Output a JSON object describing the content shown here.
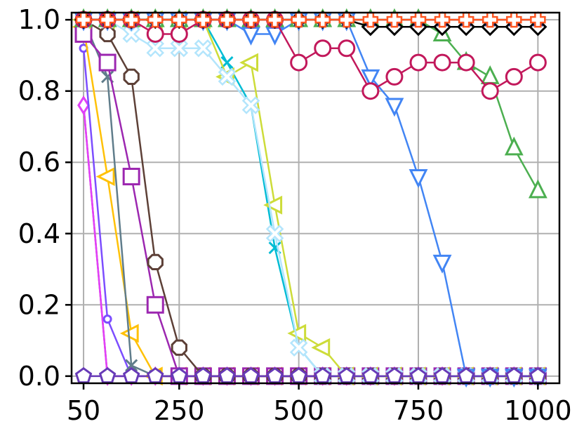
{
  "chart_data": {
    "type": "line",
    "title": "",
    "xlabel": "",
    "ylabel": "",
    "xlim": [
      25,
      1045
    ],
    "ylim": [
      -0.02,
      1.02
    ],
    "grid": true,
    "legend": "none",
    "x_ticks": [
      {
        "value": 50,
        "label": "50"
      },
      {
        "value": 250,
        "label": "250"
      },
      {
        "value": 500,
        "label": "500"
      },
      {
        "value": 750,
        "label": "750"
      },
      {
        "value": 1000,
        "label": "1000"
      }
    ],
    "y_ticks": [
      {
        "value": 0.0,
        "label": "0.0"
      },
      {
        "value": 0.2,
        "label": "0.2"
      },
      {
        "value": 0.4,
        "label": "0.4"
      },
      {
        "value": 0.6,
        "label": "0.6"
      },
      {
        "value": 0.8,
        "label": "0.8"
      },
      {
        "value": 1.0,
        "label": "1.0"
      }
    ],
    "x": [
      50,
      100,
      150,
      200,
      250,
      300,
      350,
      400,
      450,
      500,
      550,
      600,
      650,
      700,
      750,
      800,
      850,
      900,
      950,
      1000
    ],
    "series": [
      {
        "color": "#d81b60",
        "marker": "diamond_thin",
        "values": [
          0.76,
          0.0,
          0.0,
          0.0,
          0.0,
          0.0,
          0.0,
          0.0,
          0.0,
          0.0,
          0.0,
          0.0,
          0.0,
          0.0,
          0.0,
          0.0,
          0.0,
          0.0,
          0.0,
          0.0
        ]
      },
      {
        "color": "#e040fb",
        "marker": "diamond_thin",
        "values": [
          0.76,
          0.0,
          0.0,
          0.0,
          0.0,
          0.0,
          0.0,
          0.0,
          0.0,
          0.0,
          0.0,
          0.0,
          0.0,
          0.0,
          0.0,
          0.0,
          0.0,
          0.0,
          0.0,
          0.0
        ]
      },
      {
        "color": "#7c4dff",
        "marker": "small_circle",
        "values": [
          0.92,
          0.16,
          0.0,
          0.0,
          0.0,
          0.0,
          0.0,
          0.0,
          0.0,
          0.0,
          0.0,
          0.0,
          0.0,
          0.0,
          0.0,
          0.0,
          0.0,
          0.0,
          0.0,
          0.0
        ]
      },
      {
        "color": "#ffc107",
        "marker": "triangle_left",
        "values": [
          0.98,
          0.56,
          0.12,
          0.0,
          0.0,
          0.0,
          0.0,
          0.0,
          0.0,
          0.0,
          0.0,
          0.0,
          0.0,
          0.0,
          0.0,
          0.0,
          0.0,
          0.0,
          0.0,
          0.0
        ]
      },
      {
        "color": "#607d8b",
        "marker": "x",
        "values": [
          1.0,
          0.84,
          0.03,
          0.0,
          0.0,
          0.0,
          0.0,
          0.0,
          0.0,
          0.0,
          0.0,
          0.0,
          0.0,
          0.0,
          0.0,
          0.0,
          0.0,
          0.0,
          0.0,
          0.0
        ]
      },
      {
        "color": "#9c27b0",
        "marker": "square",
        "values": [
          0.96,
          0.88,
          0.56,
          0.2,
          0.0,
          0.0,
          0.0,
          0.0,
          0.0,
          0.0,
          0.0,
          0.0,
          0.0,
          0.0,
          0.0,
          0.0,
          0.0,
          0.0,
          0.0,
          0.0
        ]
      },
      {
        "color": "#5d4037",
        "marker": "octagon",
        "values": [
          1.0,
          0.96,
          0.84,
          0.32,
          0.08,
          0.0,
          0.0,
          0.0,
          0.0,
          0.0,
          0.0,
          0.0,
          0.0,
          0.0,
          0.0,
          0.0,
          0.0,
          0.0,
          0.0,
          0.0
        ]
      },
      {
        "color": "#00bcd4",
        "marker": "x",
        "values": [
          1.0,
          1.0,
          1.0,
          1.0,
          1.0,
          1.0,
          0.88,
          0.76,
          0.36,
          0.08,
          0.0,
          0.0,
          0.0,
          0.0,
          0.0,
          0.0,
          0.0,
          0.0,
          0.0,
          0.0
        ]
      },
      {
        "color": "#cddc39",
        "marker": "triangle_left",
        "values": [
          1.0,
          1.0,
          1.0,
          1.0,
          1.0,
          1.0,
          0.84,
          0.88,
          0.48,
          0.12,
          0.08,
          0.0,
          0.0,
          0.0,
          0.0,
          0.0,
          0.0,
          0.0,
          0.0,
          0.0
        ]
      },
      {
        "color": "#b3e5fc",
        "marker": "x_filled",
        "values": [
          1.0,
          1.0,
          0.96,
          0.92,
          0.92,
          0.92,
          0.84,
          0.76,
          0.4,
          0.08,
          0.0,
          0.0,
          0.0,
          0.0,
          0.0,
          0.0,
          0.0,
          0.0,
          0.0,
          0.0
        ]
      },
      {
        "color": "#4285f4",
        "marker": "triangle_down",
        "values": [
          1.0,
          1.0,
          1.0,
          1.0,
          1.0,
          1.0,
          1.0,
          0.96,
          0.96,
          1.0,
          1.0,
          1.0,
          0.84,
          0.76,
          0.56,
          0.32,
          0.0,
          0.0,
          0.0,
          0.0
        ]
      },
      {
        "color": "#4caf50",
        "marker": "triangle_up",
        "values": [
          1.0,
          1.0,
          1.0,
          1.0,
          1.0,
          1.0,
          1.0,
          1.0,
          1.0,
          1.0,
          1.0,
          1.0,
          1.0,
          1.0,
          1.0,
          0.96,
          0.88,
          0.84,
          0.64,
          0.52
        ]
      },
      {
        "color": "#c2185b",
        "marker": "circle",
        "values": [
          1.0,
          1.0,
          1.0,
          0.96,
          0.96,
          1.0,
          1.0,
          1.0,
          1.0,
          0.88,
          0.92,
          0.92,
          0.8,
          0.84,
          0.88,
          0.88,
          0.88,
          0.8,
          0.84,
          0.88
        ]
      },
      {
        "color": "#000000",
        "marker": "diamond",
        "values": [
          1.0,
          1.0,
          1.0,
          1.0,
          1.0,
          1.0,
          1.0,
          1.0,
          1.0,
          1.0,
          1.0,
          1.0,
          0.98,
          0.98,
          0.98,
          0.98,
          0.98,
          0.98,
          0.98,
          0.98
        ]
      },
      {
        "color": "#1a237e",
        "marker": "star",
        "values": [
          1.0,
          1.0,
          1.0,
          1.0,
          1.0,
          1.0,
          1.0,
          1.0,
          1.0,
          1.0,
          1.0,
          1.0,
          1.0,
          1.0,
          1.0,
          1.0,
          1.0,
          1.0,
          1.0,
          1.0
        ]
      },
      {
        "color": "#ff5722",
        "marker": "plus",
        "values": [
          1.0,
          1.0,
          1.0,
          1.0,
          1.0,
          1.0,
          1.0,
          1.0,
          1.0,
          1.0,
          1.0,
          1.0,
          1.0,
          1.0,
          1.0,
          1.0,
          1.0,
          1.0,
          1.0,
          1.0
        ]
      },
      {
        "color": "#673ab7",
        "marker": "pentagon",
        "values": [
          0.0,
          0.0,
          0.0,
          0.0,
          0.0,
          0.0,
          0.0,
          0.0,
          0.0,
          0.0,
          0.0,
          0.0,
          0.0,
          0.0,
          0.0,
          0.0,
          0.0,
          0.0,
          0.0,
          0.0
        ]
      }
    ]
  }
}
